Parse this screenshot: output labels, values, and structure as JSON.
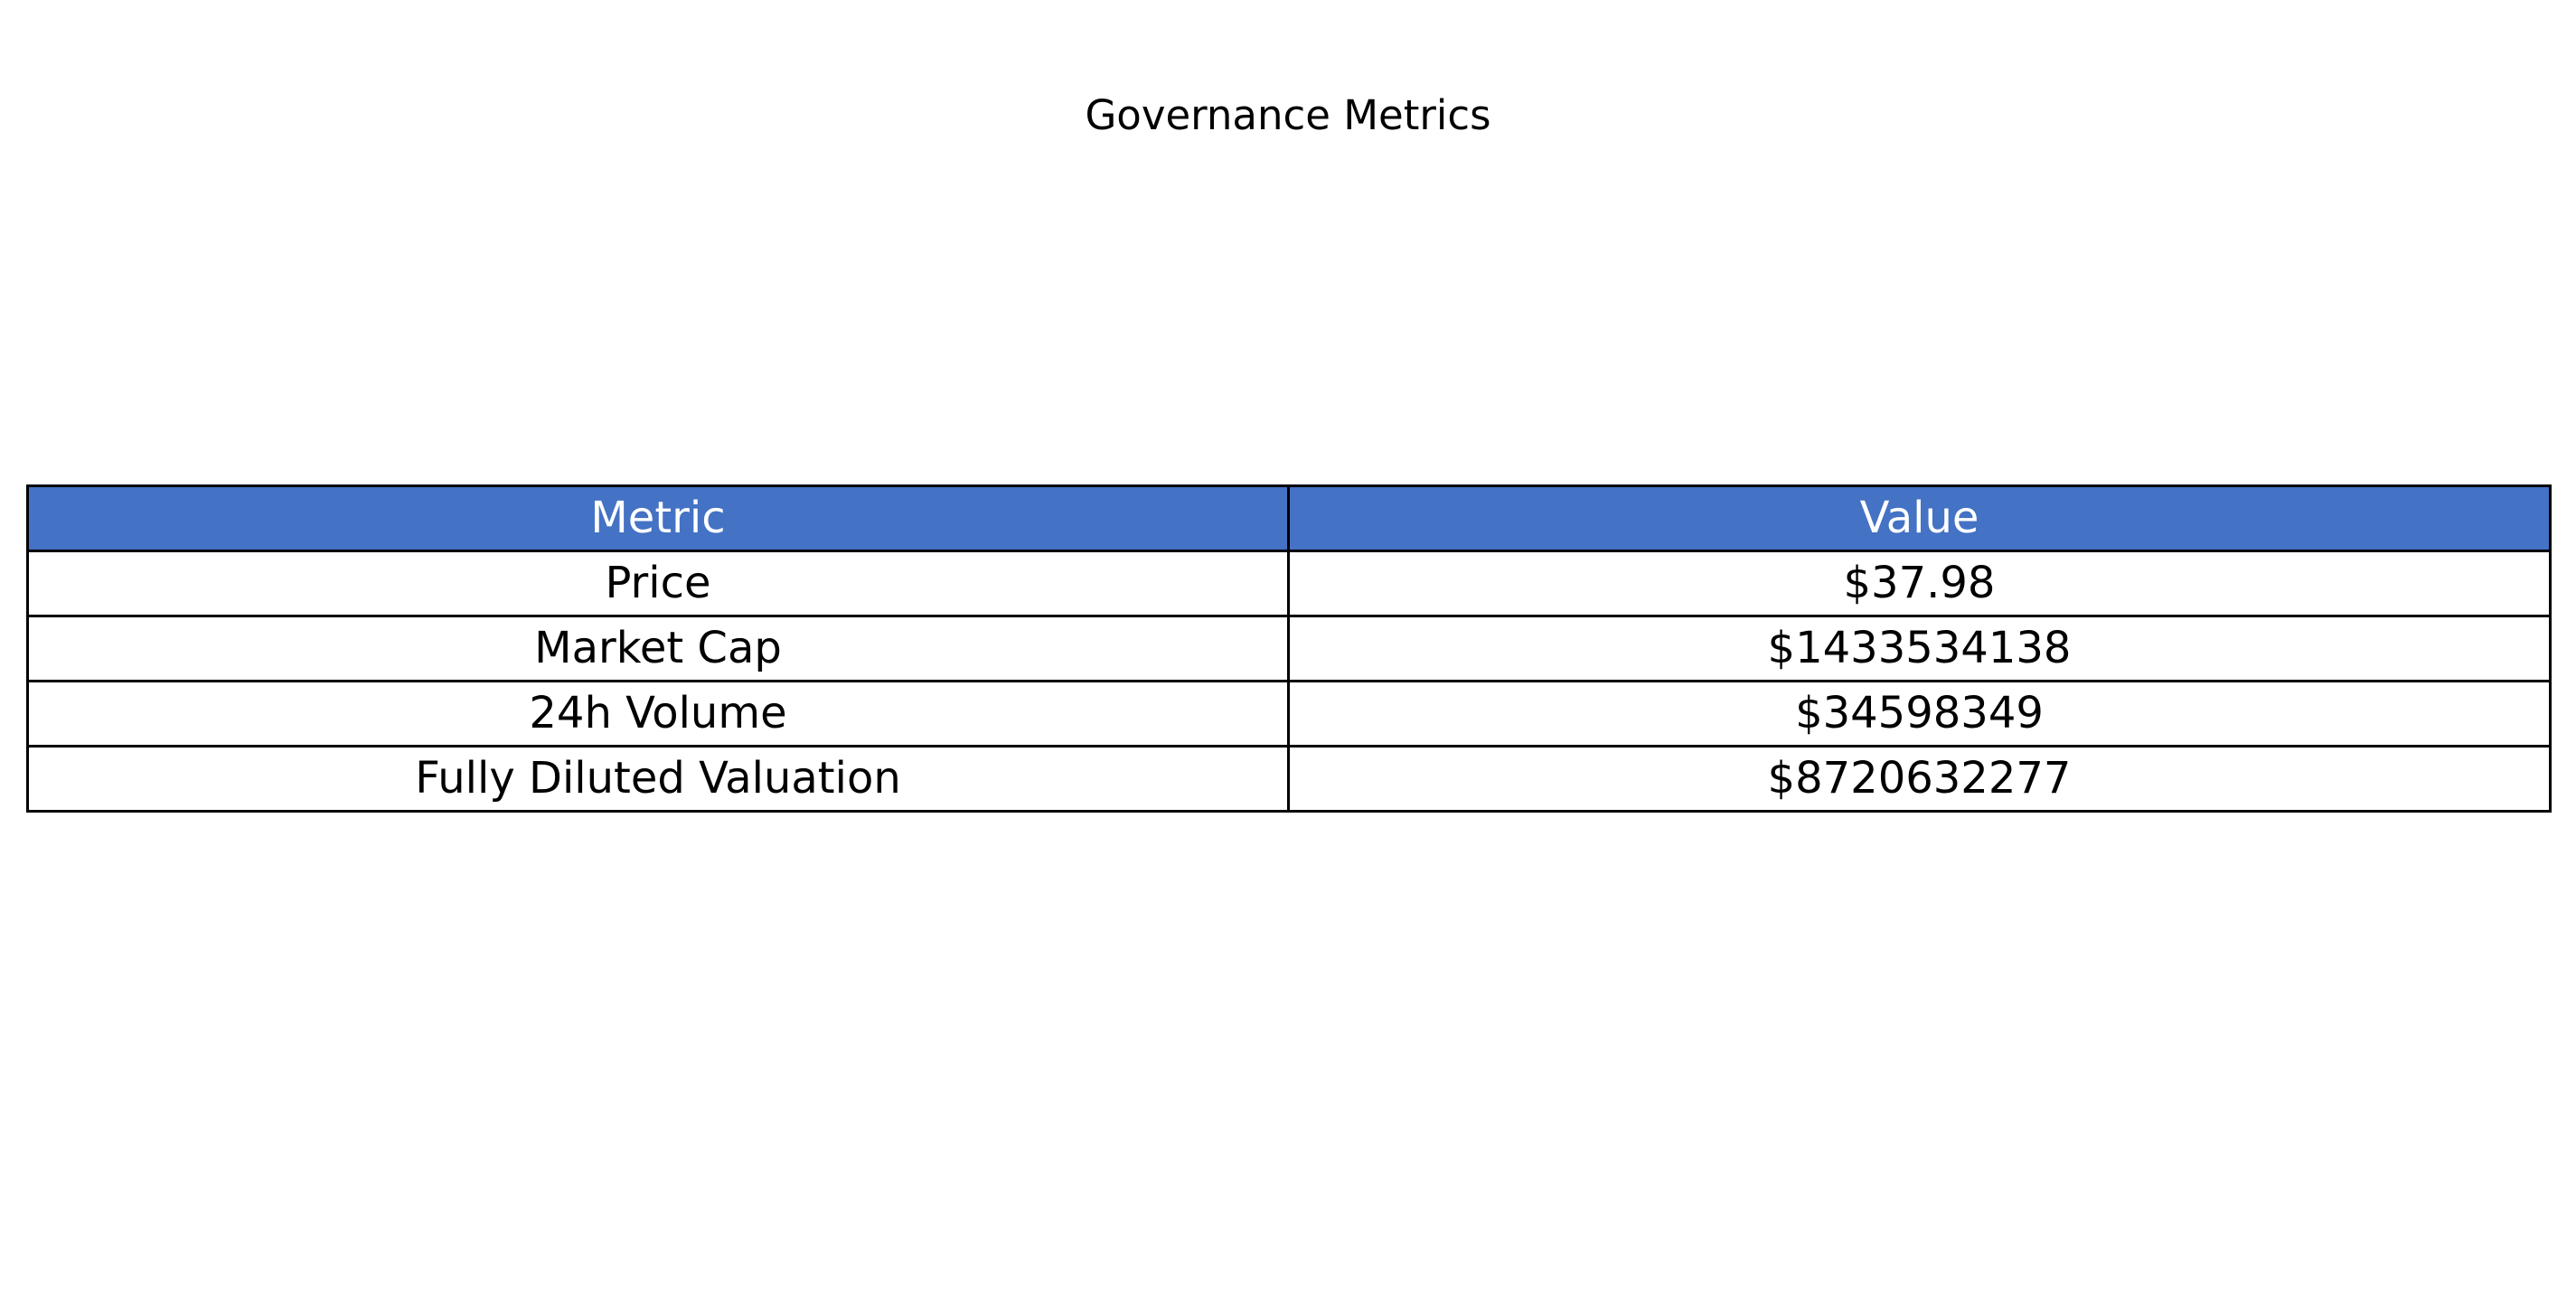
{
  "chart_data": {
    "type": "table",
    "title": "Governance Metrics",
    "columns": [
      "Metric",
      "Value"
    ],
    "rows": [
      [
        "Price",
        "$37.98"
      ],
      [
        "Market Cap",
        "$1433534138"
      ],
      [
        "24h Volume",
        "$34598349"
      ],
      [
        "Fully Diluted Valuation",
        "$8720632277"
      ]
    ]
  },
  "colors": {
    "header_background": "#4472c4",
    "header_text": "#ffffff",
    "cell_background": "#ffffff",
    "border": "#000000"
  }
}
